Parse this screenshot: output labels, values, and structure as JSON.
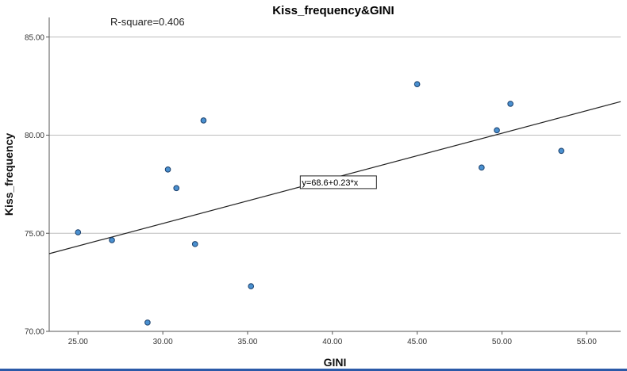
{
  "chart_data": {
    "type": "scatter",
    "title": "Kiss_frequency&GINI",
    "xlabel": "GINI",
    "ylabel": "Kiss_frequency",
    "xlim": [
      23.3,
      57.0
    ],
    "ylim": [
      70.0,
      86.0
    ],
    "x_ticks": [
      "25.00",
      "30.00",
      "35.00",
      "40.00",
      "45.00",
      "50.00",
      "55.00"
    ],
    "x_tick_values": [
      25,
      30,
      35,
      40,
      45,
      50,
      55
    ],
    "y_ticks": [
      "70.00",
      "75.00",
      "80.00",
      "85.00"
    ],
    "y_tick_values": [
      70,
      75,
      80,
      85
    ],
    "grid": "horizontal",
    "r_square_text": "R-square=0.406",
    "fit_line": {
      "intercept": 68.6,
      "slope": 0.23,
      "label": "y=68.6+0.23*x"
    },
    "points": [
      {
        "x": 25.0,
        "y": 75.05
      },
      {
        "x": 27.0,
        "y": 74.65
      },
      {
        "x": 29.1,
        "y": 70.45
      },
      {
        "x": 30.3,
        "y": 78.25
      },
      {
        "x": 30.8,
        "y": 77.3
      },
      {
        "x": 31.9,
        "y": 74.45
      },
      {
        "x": 32.4,
        "y": 80.75
      },
      {
        "x": 35.2,
        "y": 72.3
      },
      {
        "x": 45.0,
        "y": 82.6
      },
      {
        "x": 48.8,
        "y": 78.35
      },
      {
        "x": 49.7,
        "y": 80.25
      },
      {
        "x": 50.5,
        "y": 81.6
      },
      {
        "x": 53.5,
        "y": 79.2
      }
    ],
    "point_color": "#4a90d0",
    "point_stroke": "#1a3f6b",
    "line_color": "#222222",
    "grid_color": "#bdbdbd"
  }
}
